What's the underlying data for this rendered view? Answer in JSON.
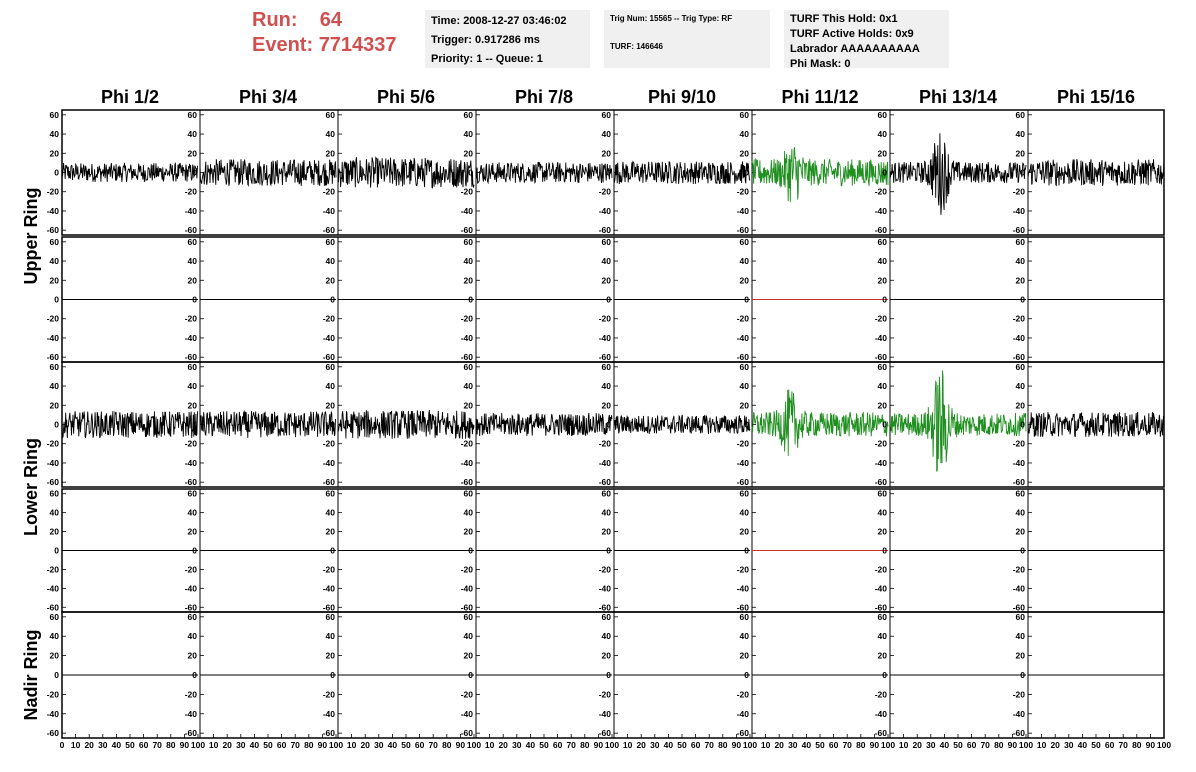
{
  "header": {
    "run_label": "Run:",
    "run_value": "64",
    "event_label": "Event:",
    "event_value": "7714337",
    "time": "Time: 2008-12-27 03:46:02",
    "trigger": "Trigger: 0.917286 ms",
    "priority": "Priority: 1 -- Queue: 1",
    "trig_num": "Trig Num: 15565 -- Trig Type: RF",
    "turf": "TURF: 146646",
    "turf_this_hold": "TURF This Hold: 0x1",
    "turf_active_holds": "TURF Active Holds: 0x9",
    "labrador": "Labrador AAAAAAAAAA",
    "phi_mask": "Phi Mask: 0"
  },
  "colors": {
    "run_text": "#d05050",
    "trace_default": "#000000",
    "trace_triggered": "#1f8f1f",
    "flat_triggered": "#cc3030",
    "info_bg": "#f0f0f0"
  },
  "chart_data": {
    "type": "line",
    "columns": [
      "Phi 1/2",
      "Phi 3/4",
      "Phi 5/6",
      "Phi 7/8",
      "Phi 9/10",
      "Phi 11/12",
      "Phi 13/14",
      "Phi 15/16"
    ],
    "rows": [
      {
        "label": "Upper Ring",
        "panels": [
          "top",
          "bottom"
        ]
      },
      {
        "label": "Lower Ring",
        "panels": [
          "top",
          "bottom"
        ]
      },
      {
        "label": "Nadir Ring",
        "panels": [
          "single"
        ]
      }
    ],
    "ylim": [
      -65,
      65
    ],
    "y_ticks": [
      "60",
      "40",
      "20",
      "0",
      "-20",
      "-40",
      "-60"
    ],
    "xlim": [
      0,
      100
    ],
    "x_ticks": [
      "0",
      "10",
      "20",
      "30",
      "40",
      "50",
      "60",
      "70",
      "80",
      "90",
      "100"
    ],
    "series": [
      {
        "ring": "Upper Ring",
        "panel": "top",
        "col": 0,
        "style": "noise",
        "amp": 10,
        "color": "trace_default"
      },
      {
        "ring": "Upper Ring",
        "panel": "top",
        "col": 1,
        "style": "noise",
        "amp": 14,
        "color": "trace_default"
      },
      {
        "ring": "Upper Ring",
        "panel": "top",
        "col": 2,
        "style": "noise",
        "amp": 16,
        "color": "trace_default"
      },
      {
        "ring": "Upper Ring",
        "panel": "top",
        "col": 3,
        "style": "noise",
        "amp": 11,
        "color": "trace_default"
      },
      {
        "ring": "Upper Ring",
        "panel": "top",
        "col": 4,
        "style": "noise",
        "amp": 12,
        "color": "trace_default"
      },
      {
        "ring": "Upper Ring",
        "panel": "top",
        "col": 5,
        "style": "pulse",
        "amp": 14,
        "peak": 35,
        "peak_x": 30,
        "color": "trace_triggered"
      },
      {
        "ring": "Upper Ring",
        "panel": "top",
        "col": 6,
        "style": "pulse",
        "amp": 11,
        "peak": 45,
        "peak_x": 37,
        "color": "trace_default"
      },
      {
        "ring": "Upper Ring",
        "panel": "top",
        "col": 7,
        "style": "noise",
        "amp": 14,
        "color": "trace_default"
      },
      {
        "ring": "Upper Ring",
        "panel": "bottom",
        "col": 5,
        "style": "flat",
        "color": "flat_triggered"
      },
      {
        "ring": "Lower Ring",
        "panel": "top",
        "col": 0,
        "style": "noise",
        "amp": 14,
        "color": "trace_default"
      },
      {
        "ring": "Lower Ring",
        "panel": "top",
        "col": 1,
        "style": "noise",
        "amp": 14,
        "color": "trace_default"
      },
      {
        "ring": "Lower Ring",
        "panel": "top",
        "col": 2,
        "style": "noise",
        "amp": 15,
        "color": "trace_default"
      },
      {
        "ring": "Lower Ring",
        "panel": "top",
        "col": 3,
        "style": "noise",
        "amp": 12,
        "color": "trace_default"
      },
      {
        "ring": "Lower Ring",
        "panel": "top",
        "col": 4,
        "style": "noise",
        "amp": 10,
        "color": "trace_default"
      },
      {
        "ring": "Lower Ring",
        "panel": "top",
        "col": 5,
        "style": "pulse",
        "amp": 13,
        "peak": 38,
        "peak_x": 28,
        "color": "trace_triggered"
      },
      {
        "ring": "Lower Ring",
        "panel": "top",
        "col": 6,
        "style": "pulse",
        "amp": 12,
        "peak": 62,
        "peak_x": 37,
        "color": "trace_triggered"
      },
      {
        "ring": "Lower Ring",
        "panel": "top",
        "col": 7,
        "style": "noise",
        "amp": 13,
        "color": "trace_default"
      },
      {
        "ring": "Lower Ring",
        "panel": "bottom",
        "col": 5,
        "style": "flat",
        "color": "flat_triggered"
      }
    ]
  }
}
